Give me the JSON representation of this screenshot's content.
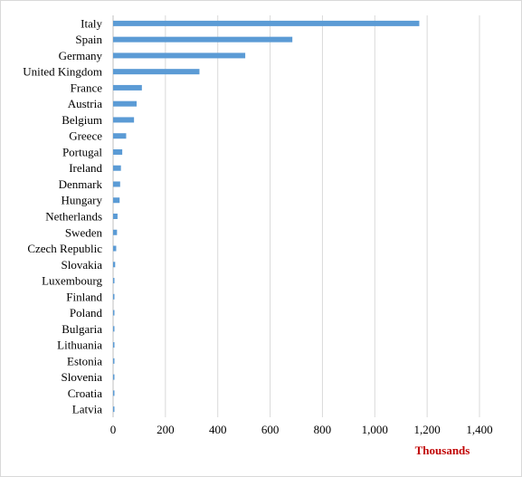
{
  "chart_data": {
    "type": "bar",
    "orientation": "horizontal",
    "title": "",
    "xlabel": "Thousands",
    "ylabel": "",
    "categories": [
      "Italy",
      "Spain",
      "Germany",
      "United Kingdom",
      "France",
      "Austria",
      "Belgium",
      "Greece",
      "Portugal",
      "Ireland",
      "Denmark",
      "Hungary",
      "Netherlands",
      "Sweden",
      "Czech Republic",
      "Slovakia",
      "Luxembourg",
      "Finland",
      "Poland",
      "Bulgaria",
      "Lithuania",
      "Estonia",
      "Slovenia",
      "Croatia",
      "Latvia"
    ],
    "values": [
      1170,
      685,
      505,
      330,
      110,
      90,
      80,
      50,
      35,
      30,
      27,
      25,
      17,
      15,
      12,
      8,
      5,
      5,
      4,
      4,
      3,
      3,
      2,
      2,
      1
    ],
    "xlim": [
      0,
      1400
    ],
    "xticks": [
      0,
      200,
      400,
      600,
      800,
      1000,
      1200,
      1400
    ],
    "xtick_labels": [
      "0",
      "200",
      "400",
      "600",
      "800",
      "1,000",
      "1,200",
      "1,400"
    ],
    "grid": true,
    "legend": false,
    "bar_color": "#5b9bd5",
    "grid_color": "#d9d9d9",
    "xlabel_color": "#c00000"
  }
}
